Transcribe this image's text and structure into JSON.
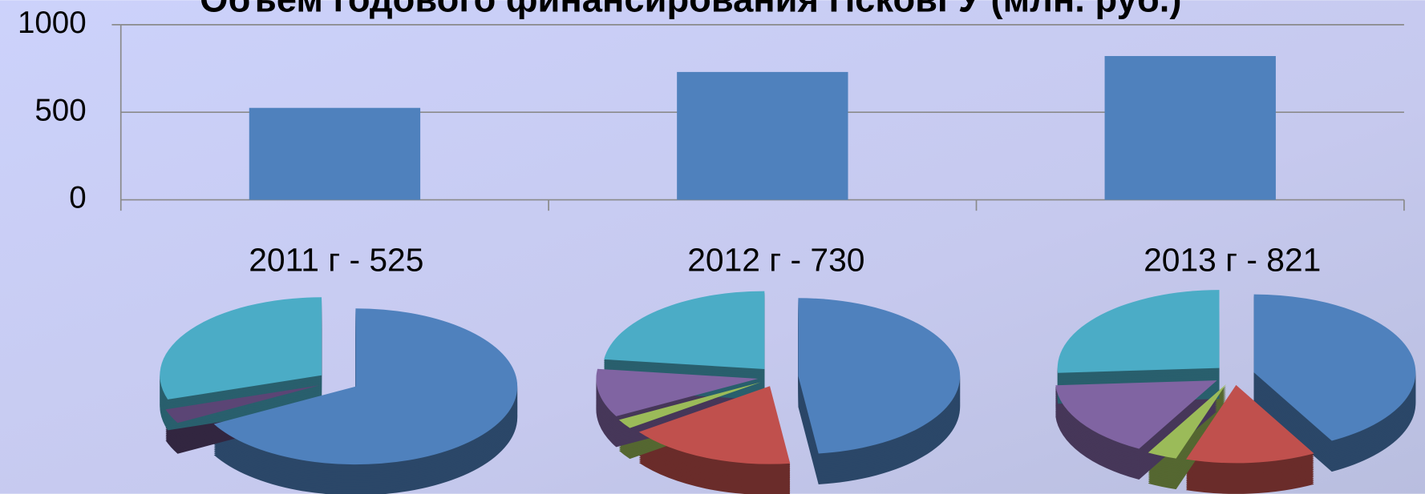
{
  "chart_data": [
    {
      "type": "bar",
      "title": "Объем годового финансирования ПсковГУ (млн. руб.)",
      "categories": [
        null,
        null,
        null
      ],
      "values": [
        525,
        730,
        821
      ],
      "color": "#4f81bd",
      "ylim": [
        0,
        1000
      ],
      "yticks": [
        0,
        500,
        1000
      ],
      "grid": true
    },
    {
      "type": "pie",
      "title": "2011 г  - 525",
      "values": [
        67,
        3,
        30
      ],
      "colors": [
        "#4f81bd",
        "#5b4575",
        "#4bacc6"
      ]
    },
    {
      "type": "pie",
      "title": "2012 г  - 730",
      "values": [
        48,
        17,
        2,
        10,
        23
      ],
      "colors": [
        "#4f81bd",
        "#c0504d",
        "#9bbb59",
        "#8064a2",
        "#4bacc6"
      ]
    },
    {
      "type": "pie",
      "title": "2013 г -  821",
      "values": [
        42,
        13,
        3,
        16,
        26
      ],
      "colors": [
        "#4f81bd",
        "#c0504d",
        "#9bbb59",
        "#8064a2",
        "#4bacc6"
      ]
    }
  ]
}
